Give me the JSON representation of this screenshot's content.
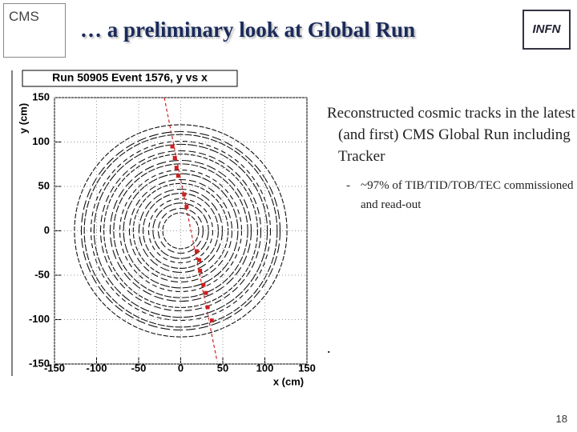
{
  "slide": {
    "title": "… a preliminary look at Global Run",
    "logos": {
      "left": "CMS",
      "right": "INFN"
    },
    "bullets": [
      {
        "text": "Reconstructed cosmic tracks in the latest (and first) CMS Global Run including Tracker",
        "sub": [
          "~97% of TIB/TID/TOB/TEC commissioned and read-out"
        ]
      }
    ],
    "note": ".",
    "page_number": "18"
  },
  "chart_data": {
    "type": "scatter",
    "title": "Run 50905 Event 1576, y vs x",
    "x_label": "x (cm)",
    "y_label": "y (cm)",
    "x": [
      -10,
      -7,
      -5,
      -3,
      4,
      7,
      19,
      22,
      23,
      27,
      30,
      32,
      37
    ],
    "values": [
      95,
      82,
      71,
      62,
      41,
      27,
      -23,
      -33,
      -45,
      -61,
      -70,
      -86,
      -101
    ],
    "color": "#cc2020",
    "xlim": [
      -150,
      150
    ],
    "ylim": [
      -150,
      150
    ],
    "xticks": [
      -150,
      -100,
      -50,
      0,
      50,
      100,
      150
    ],
    "yticks": [
      -150,
      -100,
      -50,
      0,
      50,
      100,
      150
    ],
    "grid": true
  }
}
